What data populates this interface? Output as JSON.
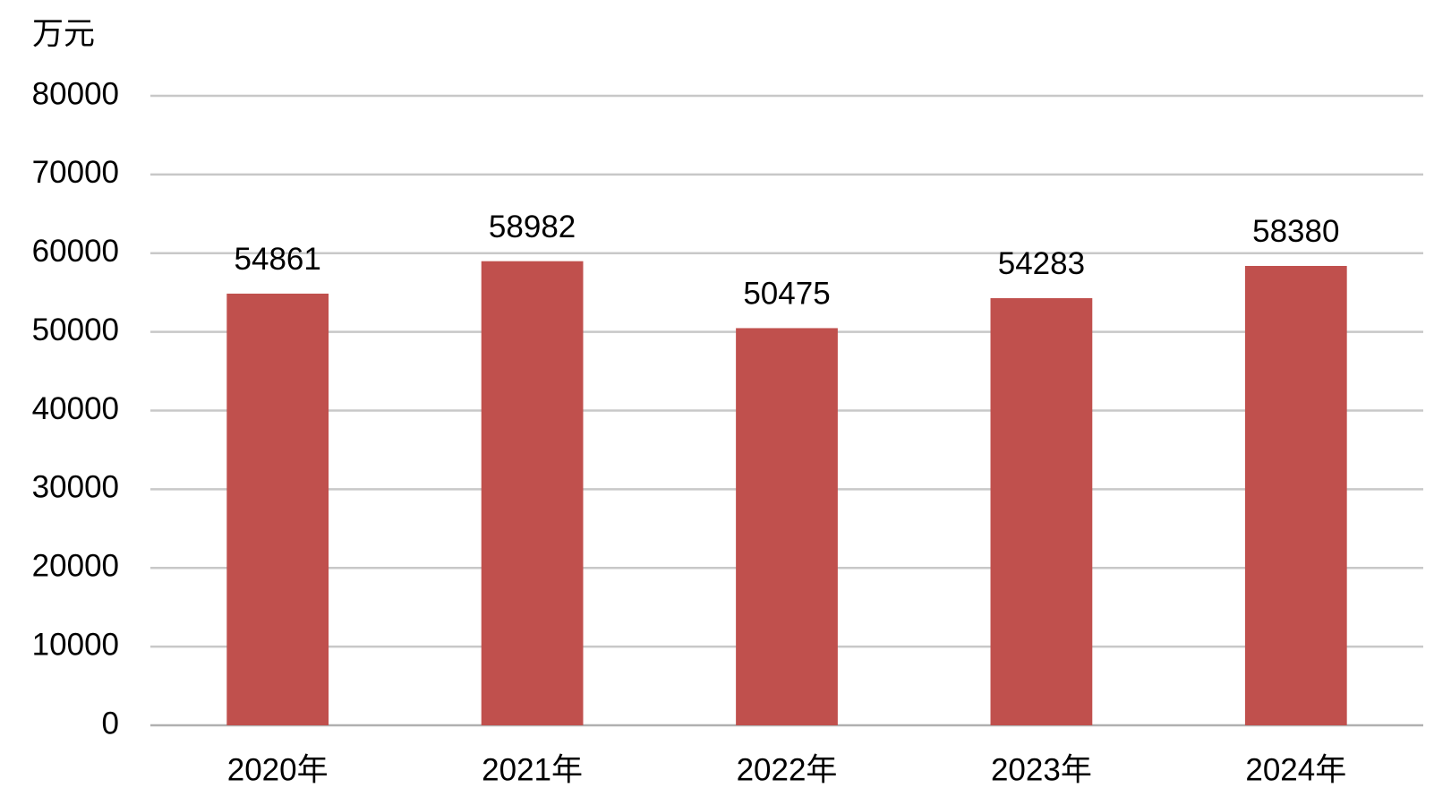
{
  "chart_data": {
    "type": "bar",
    "y_label": "万元",
    "categories": [
      "2020年",
      "2021年",
      "2022年",
      "2023年",
      "2024年"
    ],
    "values": [
      54861,
      58982,
      50475,
      54283,
      58380
    ],
    "color": "#c0504d",
    "ylim": [
      0,
      80000
    ],
    "yticks": [
      0,
      10000,
      20000,
      30000,
      40000,
      50000,
      60000,
      70000,
      80000
    ],
    "grid": true
  }
}
